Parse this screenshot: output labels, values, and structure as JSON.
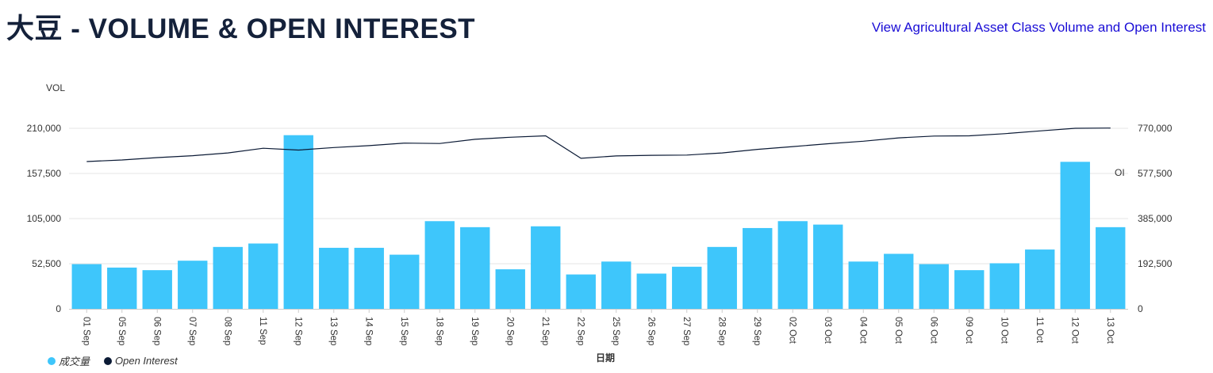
{
  "header": {
    "title_cn": "大豆",
    "title_rest": " - VOLUME & OPEN INTEREST",
    "link_text": "View Agricultural Asset Class Volume and Open Interest"
  },
  "colors": {
    "bar": "#3ec6fb",
    "line": "#0b1a35",
    "grid": "#e6e6e6",
    "link": "#1a0dd6"
  },
  "chart_data": {
    "type": "bar",
    "xlabel": "日期",
    "ylabel": "VOL",
    "y2label": "OI",
    "ylim": [
      0,
      210000
    ],
    "y2lim": [
      0,
      770000
    ],
    "yticks": [
      "0",
      "52,500",
      "105,000",
      "157,500",
      "210,000"
    ],
    "y2ticks": [
      "0",
      "192,500",
      "385,000",
      "577,500",
      "770,000"
    ],
    "grid": true,
    "legend_position": "bottom-left",
    "categories": [
      "01 Sep",
      "05 Sep",
      "06 Sep",
      "07 Sep",
      "08 Sep",
      "11 Sep",
      "12 Sep",
      "13 Sep",
      "14 Sep",
      "15 Sep",
      "18 Sep",
      "19 Sep",
      "20 Sep",
      "21 Sep",
      "22 Sep",
      "25 Sep",
      "26 Sep",
      "27 Sep",
      "28 Sep",
      "29 Sep",
      "02 Oct",
      "03 Oct",
      "04 Oct",
      "05 Oct",
      "06 Oct",
      "09 Oct",
      "10 Oct",
      "11 Oct",
      "12 Oct",
      "13 Oct"
    ],
    "series": [
      {
        "name": "成交量",
        "kind": "bar",
        "axis": "left",
        "values": [
          52000,
          48000,
          45000,
          56000,
          72000,
          76000,
          202000,
          71000,
          71000,
          63000,
          102000,
          95000,
          46000,
          96000,
          40000,
          55000,
          41000,
          49000,
          72000,
          94000,
          102000,
          98000,
          55000,
          64000,
          52000,
          45000,
          53000,
          69000,
          171000,
          95000
        ]
      },
      {
        "name": "Open Interest",
        "kind": "line",
        "axis": "right",
        "values": [
          628000,
          635000,
          645000,
          653000,
          665000,
          685000,
          677000,
          688000,
          696000,
          707000,
          705000,
          723000,
          732000,
          738000,
          642000,
          652000,
          655000,
          656000,
          665000,
          680000,
          692000,
          704000,
          715000,
          729000,
          737000,
          738000,
          747000,
          759000,
          770000,
          771000
        ]
      }
    ]
  }
}
